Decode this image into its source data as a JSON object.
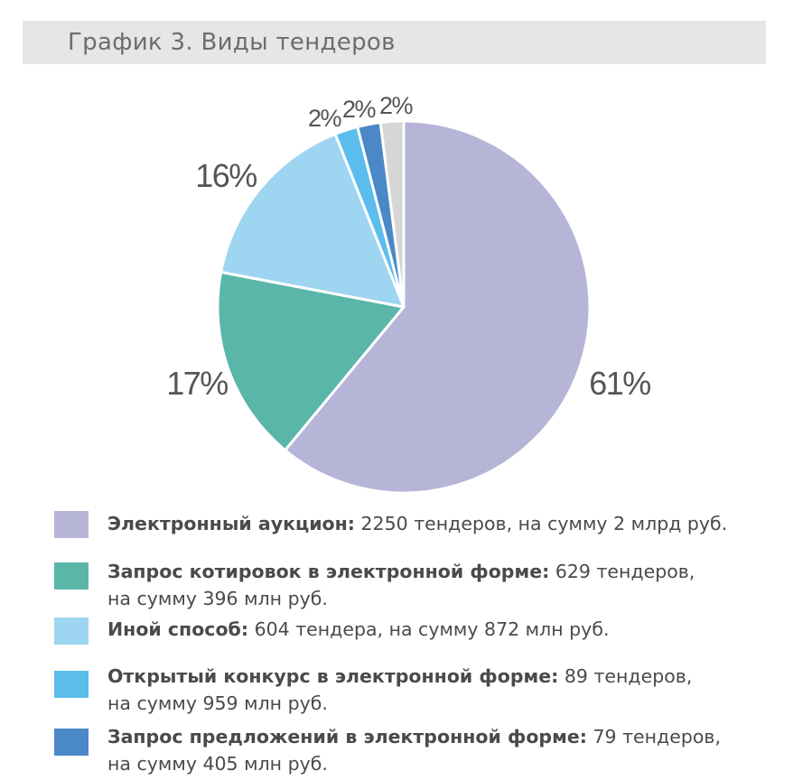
{
  "title": "График 3. Виды тендеров",
  "chart_data": {
    "type": "pie",
    "title": "График 3. Виды тендеров",
    "slices": [
      {
        "name": "Электронный аукцион",
        "value": 61,
        "label": "61%",
        "color": "#b6b5d8"
      },
      {
        "name": "Запрос котировок в электронной форме",
        "value": 17,
        "label": "17%",
        "color": "#5bb6aa"
      },
      {
        "name": "Иной способ",
        "value": 16,
        "label": "16%",
        "color": "#9ed5f1"
      },
      {
        "name": "Открытый конкурс в электронной форме",
        "value": 2,
        "label": "2%",
        "color": "#5bbdec"
      },
      {
        "name": "Запрос предложений в электронной форме",
        "value": 2,
        "label": "2%",
        "color": "#4a88c7"
      },
      {
        "name": "",
        "value": 2,
        "label": "2%",
        "color": "#d6d6d6"
      }
    ]
  },
  "legend": [
    {
      "name": "Электронный аукцион:",
      "detail": " 2250 тендеров, на сумму 2 млрд руб.",
      "color": "#b6b5d8"
    },
    {
      "name": "Запрос котировок в электронной форме:",
      "detail": " 629 тендеров,",
      "detail2": "на сумму 396 млн руб.",
      "color": "#5bb6aa"
    },
    {
      "name": "Иной способ:",
      "detail": " 604 тендера, на сумму 872 млн руб.",
      "color": "#9ed5f1"
    },
    {
      "name": "Открытый конкурс в электронной форме:",
      "detail": " 89 тендеров,",
      "detail2": "на сумму 959 млн руб.",
      "color": "#5bbdec"
    },
    {
      "name": "Запрос предложений в электронной форме:",
      "detail": " 79 тендеров,",
      "detail2": "на сумму 405 млн руб.",
      "color": "#4a88c7"
    }
  ]
}
